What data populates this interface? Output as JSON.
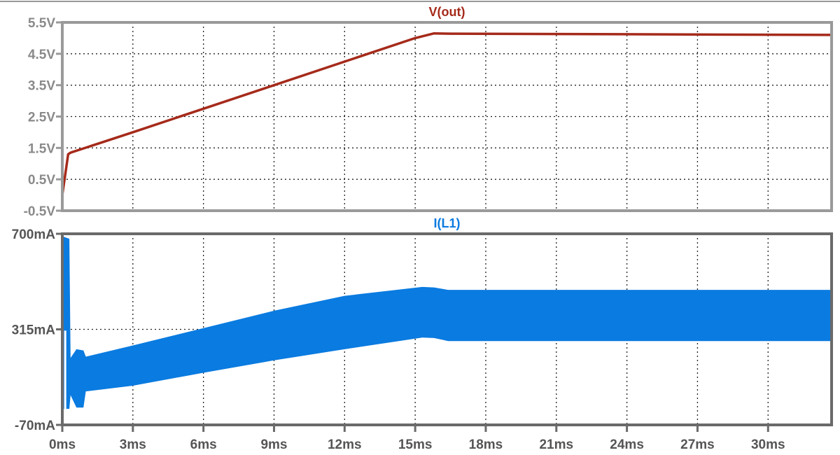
{
  "chart_data": [
    {
      "type": "line",
      "title": "V(out)",
      "color": "#a52a1a",
      "xlabel": "",
      "ylabel": "",
      "xlim": [
        0,
        32.7
      ],
      "ylim": [
        -0.5,
        5.5
      ],
      "yticks": [
        5.5,
        4.5,
        3.5,
        2.5,
        1.5,
        0.5,
        -0.5
      ],
      "ytick_labels": [
        "5.5V",
        "4.5V",
        "3.5V",
        "2.5V",
        "1.5V",
        "0.5V",
        "-0.5V"
      ],
      "grid": true,
      "x": [
        0,
        0.25,
        0.35,
        3,
        6,
        9,
        12,
        15,
        15.8,
        16.5,
        32.7
      ],
      "y": [
        0.0,
        1.3,
        1.35,
        2.0,
        2.75,
        3.5,
        4.25,
        5.0,
        5.15,
        5.14,
        5.1
      ]
    },
    {
      "type": "area",
      "title": "I(L1)",
      "color": "#0a7be0",
      "xlabel": "",
      "ylabel": "",
      "xlim": [
        0,
        32.7
      ],
      "ylim": [
        -70,
        700
      ],
      "yticks": [
        700,
        315,
        -70
      ],
      "ytick_labels": [
        "700mA",
        "315mA",
        "-70mA"
      ],
      "grid": true,
      "x": [
        0,
        0.3,
        0.35,
        0.6,
        0.9,
        1.0,
        3,
        6,
        9,
        12,
        15.3,
        15.8,
        16.4,
        32.7
      ],
      "series": [
        {
          "name": "upper envelope",
          "values": [
            690,
            680,
            200,
            235,
            230,
            205,
            250,
            320,
            390,
            450,
            486,
            484,
            474,
            474
          ]
        },
        {
          "name": "lower envelope",
          "values": [
            -5,
            -5,
            50,
            0,
            0,
            65,
            88,
            140,
            190,
            235,
            282,
            280,
            268,
            268
          ]
        }
      ]
    }
  ],
  "x_axis": {
    "ticks": [
      0,
      3,
      6,
      9,
      12,
      15,
      18,
      21,
      24,
      27,
      30
    ],
    "tick_labels": [
      "0ms",
      "3ms",
      "6ms",
      "9ms",
      "12ms",
      "15ms",
      "18ms",
      "21ms",
      "24ms",
      "27ms",
      "30ms"
    ]
  }
}
